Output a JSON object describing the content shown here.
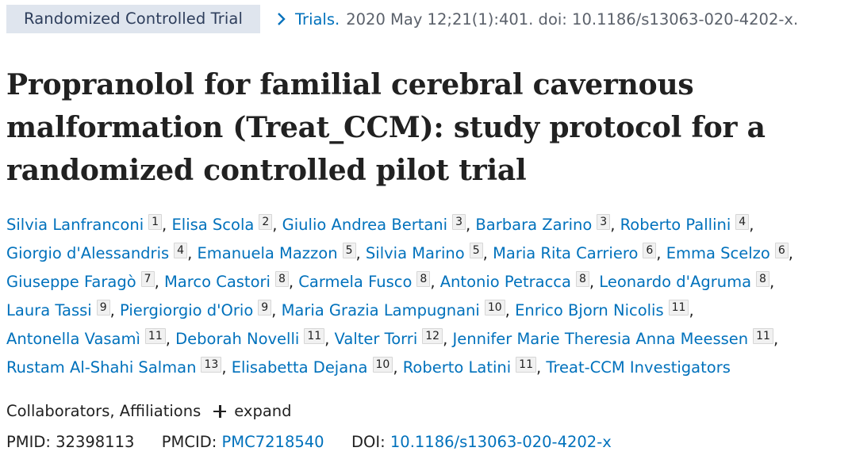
{
  "header": {
    "article_type": "Randomized Controlled Trial",
    "journal": "Trials.",
    "citation": "2020 May 12;21(1):401. doi: 10.1186/s13063-020-4202-x."
  },
  "title": {
    "line1": "Propranolol for familial cerebral cavernous",
    "line2": "malformation (Treat_CCM): study protocol for a",
    "line3": "randomized controlled pilot trial"
  },
  "authors": [
    {
      "name": "Silvia Lanfranconi",
      "aff": "1"
    },
    {
      "name": "Elisa Scola",
      "aff": "2"
    },
    {
      "name": "Giulio Andrea Bertani",
      "aff": "3"
    },
    {
      "name": "Barbara Zarino",
      "aff": "3"
    },
    {
      "name": "Roberto Pallini",
      "aff": "4"
    },
    {
      "name": "Giorgio d'Alessandris",
      "aff": "4"
    },
    {
      "name": "Emanuela Mazzon",
      "aff": "5"
    },
    {
      "name": "Silvia Marino",
      "aff": "5"
    },
    {
      "name": "Maria Rita Carriero",
      "aff": "6"
    },
    {
      "name": "Emma Scelzo",
      "aff": "6"
    },
    {
      "name": "Giuseppe Faragò",
      "aff": "7"
    },
    {
      "name": "Marco Castori",
      "aff": "8"
    },
    {
      "name": "Carmela Fusco",
      "aff": "8"
    },
    {
      "name": "Antonio Petracca",
      "aff": "8"
    },
    {
      "name": "Leonardo d'Agruma",
      "aff": "8"
    },
    {
      "name": "Laura Tassi",
      "aff": "9"
    },
    {
      "name": "Piergiorgio d'Orio",
      "aff": "9"
    },
    {
      "name": "Maria Grazia Lampugnani",
      "aff": "10"
    },
    {
      "name": "Enrico Bjorn Nicolis",
      "aff": "11"
    },
    {
      "name": "Antonella Vasamì",
      "aff": "11"
    },
    {
      "name": "Deborah Novelli",
      "aff": "11"
    },
    {
      "name": "Valter Torri",
      "aff": "12"
    },
    {
      "name": "Jennifer Marie Theresia Anna Meessen",
      "aff": "11"
    },
    {
      "name": "Rustam Al-Shahi Salman",
      "aff": "13"
    },
    {
      "name": "Elisabetta Dejana",
      "aff": "10"
    },
    {
      "name": "Roberto Latini",
      "aff": "11"
    },
    {
      "name": "Treat-CCM Investigators",
      "aff": ""
    }
  ],
  "collab": {
    "label": "Collaborators, Affiliations",
    "expand": "expand"
  },
  "ids": {
    "pmid_label": "PMID:",
    "pmid": "32398113",
    "pmcid_label": "PMCID:",
    "pmcid": "PMC7218540",
    "doi_label": "DOI:",
    "doi": "10.1186/s13063-020-4202-x"
  },
  "colors": {
    "link": "#0071bc",
    "badge_bg": "#dfe5ee",
    "badge_text": "#2e3e5c"
  },
  "icons": {
    "chevron": "chevron-right-icon",
    "expand": "plus-icon"
  }
}
